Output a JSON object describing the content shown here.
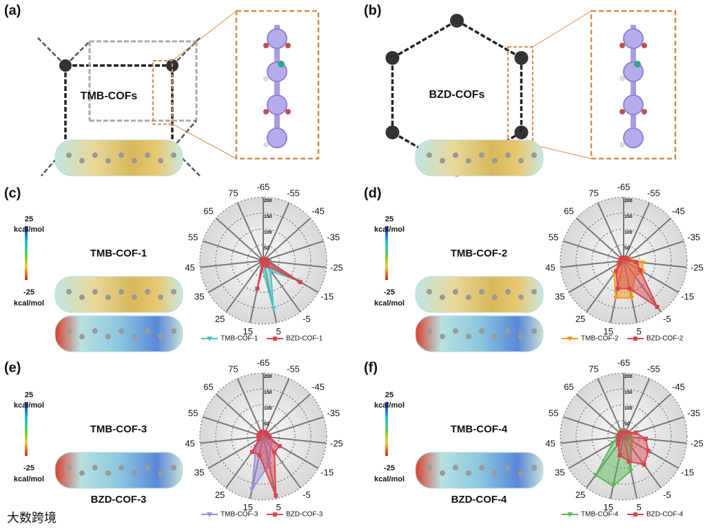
{
  "figure": {
    "panel_labels": [
      "(a)",
      "(b)",
      "(c)",
      "(d)",
      "(e)",
      "(f)"
    ],
    "structure_labels": [
      "TMB-COFs",
      "BZD-COFs"
    ],
    "esp": [
      {
        "max": "25",
        "max_unit": "kcal/mol",
        "min": "-25",
        "min_unit": "kcal/mol",
        "molecules": [
          "TMB-COF-1",
          "BZD-COF-1"
        ]
      },
      {
        "max": "25",
        "max_unit": "kcal/mol",
        "min": "-25",
        "min_unit": "kcal/mol",
        "molecules": [
          "TMB-COF-2",
          "BZD-COF-2"
        ]
      },
      {
        "max": "25",
        "max_unit": "kcal/mol",
        "min": "-25",
        "min_unit": "kcal/mol",
        "molecules": [
          "TMB-COF-3",
          "BZD-COF-3"
        ]
      },
      {
        "max": "25",
        "max_unit": "kcal/mol",
        "min": "-25",
        "min_unit": "kcal/mol",
        "molecules": [
          "TMB-COF-4",
          "BZD-COF-4"
        ]
      }
    ],
    "watermark": "大数跨境"
  },
  "chart_data": [
    {
      "type": "radar",
      "categories": [
        "-65",
        "-55",
        "-45",
        "-35",
        "-25",
        "-15",
        "-5",
        "5",
        "15",
        "25",
        "35",
        "45",
        "55",
        "65",
        "75"
      ],
      "rlim": [
        0,
        200
      ],
      "rticks": [
        50,
        100,
        150,
        200
      ],
      "series": [
        {
          "name": "TMB-COF-1",
          "color": "#4fc4c4",
          "marker": "triangle",
          "values": [
            5,
            5,
            5,
            10,
            20,
            125,
            40,
            155,
            20,
            5,
            5,
            5,
            5,
            5,
            5
          ]
        },
        {
          "name": "BZD-COF-1",
          "color": "#d9434e",
          "marker": "square",
          "values": [
            5,
            5,
            5,
            10,
            15,
            135,
            20,
            10,
            90,
            5,
            5,
            5,
            5,
            5,
            5
          ]
        }
      ]
    },
    {
      "type": "radar",
      "categories": [
        "-65",
        "-55",
        "-45",
        "-35",
        "-25",
        "-15",
        "-5",
        "5",
        "15",
        "25",
        "35",
        "45",
        "55",
        "65",
        "75"
      ],
      "rlim": [
        0,
        200
      ],
      "rticks": [
        50,
        100,
        150,
        200
      ],
      "series": [
        {
          "name": "TMB-COF-2",
          "color": "#f39a1e",
          "marker": "triangle",
          "values": [
            10,
            10,
            10,
            20,
            60,
            70,
            60,
            120,
            120,
            50,
            20,
            10,
            10,
            10,
            10
          ]
        },
        {
          "name": "BZD-COF-2",
          "color": "#d9434e",
          "marker": "square",
          "values": [
            10,
            10,
            10,
            15,
            40,
            60,
            180,
            90,
            90,
            40,
            15,
            10,
            10,
            10,
            10
          ]
        }
      ]
    },
    {
      "type": "radar",
      "categories": [
        "-65",
        "-55",
        "-45",
        "-35",
        "-25",
        "-15",
        "-5",
        "5",
        "15",
        "25",
        "35",
        "45",
        "55",
        "65",
        "75"
      ],
      "rlim": [
        0,
        200
      ],
      "rticks": [
        50,
        100,
        150,
        200
      ],
      "series": [
        {
          "name": "TMB-COF-3",
          "color": "#9b90da",
          "marker": "triangle",
          "values": [
            15,
            15,
            15,
            15,
            20,
            30,
            40,
            90,
            170,
            40,
            15,
            15,
            15,
            15,
            15
          ]
        },
        {
          "name": "BZD-COF-3",
          "color": "#d9434e",
          "marker": "square",
          "values": [
            15,
            15,
            15,
            15,
            20,
            60,
            60,
            190,
            60,
            60,
            15,
            15,
            15,
            15,
            15
          ]
        }
      ]
    },
    {
      "type": "radar",
      "categories": [
        "-65",
        "-55",
        "-45",
        "-35",
        "-25",
        "-15",
        "-5",
        "5",
        "15",
        "25",
        "35",
        "45",
        "55",
        "65",
        "75"
      ],
      "rlim": [
        0,
        200
      ],
      "rticks": [
        50,
        100,
        150,
        200
      ],
      "series": [
        {
          "name": "TMB-COF-4",
          "color": "#5cb85c",
          "marker": "triangle",
          "values": [
            20,
            15,
            15,
            20,
            20,
            30,
            40,
            110,
            160,
            150,
            40,
            20,
            15,
            20,
            20
          ]
        },
        {
          "name": "BZD-COF-4",
          "color": "#d9434e",
          "marker": "square",
          "values": [
            15,
            15,
            20,
            40,
            70,
            90,
            110,
            80,
            60,
            30,
            20,
            15,
            15,
            15,
            15
          ]
        }
      ]
    }
  ]
}
